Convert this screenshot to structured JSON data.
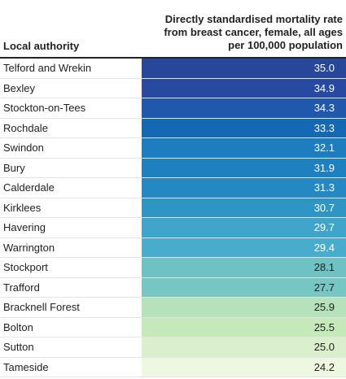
{
  "chart_data": {
    "type": "table",
    "columns": [
      "Local authority",
      "Directly standardised mortality rate from breast cancer, female, all ages per 100,000 population"
    ],
    "header": {
      "left": "Local authority",
      "right_lines": [
        "Directly standardised mortality rate",
        "from breast cancer, female, all ages",
        "per 100,000 population"
      ]
    },
    "rows": [
      {
        "name": "Telford and Wrekin",
        "value": "35.0",
        "color": "#26479a"
      },
      {
        "name": "Bexley",
        "value": "34.9",
        "color": "#274aa0"
      },
      {
        "name": "Stockton-on-Tees",
        "value": "34.3",
        "color": "#1f58ac"
      },
      {
        "name": "Rochdale",
        "value": "33.3",
        "color": "#1569b3"
      },
      {
        "name": "Swindon",
        "value": "32.1",
        "color": "#1e7dbf"
      },
      {
        "name": "Bury",
        "value": "31.9",
        "color": "#1f80c0"
      },
      {
        "name": "Calderdale",
        "value": "31.3",
        "color": "#2489c2"
      },
      {
        "name": "Kirklees",
        "value": "30.7",
        "color": "#2f95c4"
      },
      {
        "name": "Havering",
        "value": "29.7",
        "color": "#41a5cb"
      },
      {
        "name": "Warrington",
        "value": "29.4",
        "color": "#49accc"
      },
      {
        "name": "Stockport",
        "value": "28.1",
        "color": "#6fc2c4"
      },
      {
        "name": "Trafford",
        "value": "27.7",
        "color": "#76c6c3"
      },
      {
        "name": "Bracknell Forest",
        "value": "25.9",
        "color": "#b5e2ba"
      },
      {
        "name": "Bolton",
        "value": "25.5",
        "color": "#c6e9bc"
      },
      {
        "name": "Sutton",
        "value": "25.0",
        "color": "#daf0cd"
      },
      {
        "name": "Tameside",
        "value": "24.2",
        "color": "#eef8e0"
      }
    ]
  }
}
